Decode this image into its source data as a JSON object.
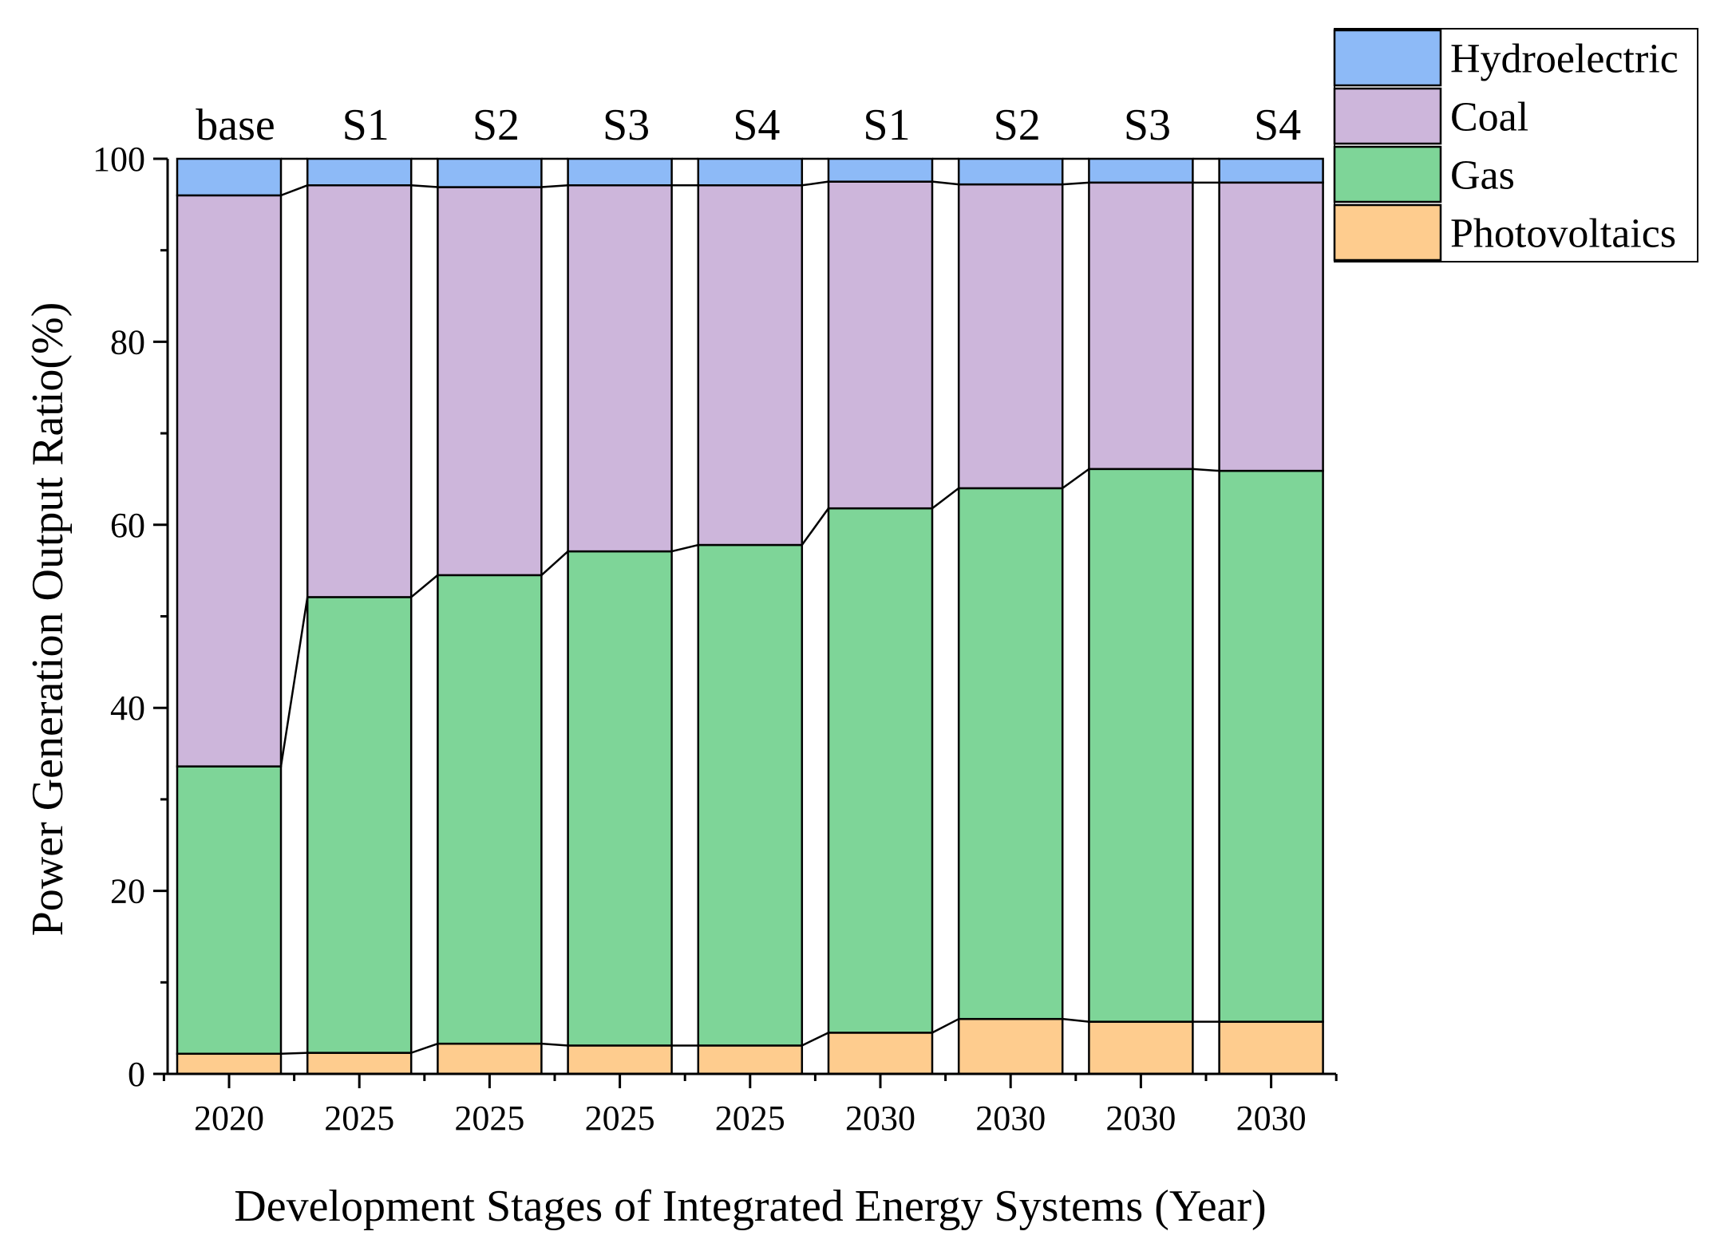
{
  "chart_data": {
    "type": "bar",
    "stacked": true,
    "xlabel": "Development Stages of Integrated Energy Systems (Year)",
    "ylabel": "Power Generation Output Ratio(%)",
    "ylim": [
      0,
      100
    ],
    "yticks": [
      0,
      20,
      40,
      60,
      80,
      100
    ],
    "categories": [
      "2020",
      "2025",
      "2025",
      "2025",
      "2025",
      "2030",
      "2030",
      "2030",
      "2030"
    ],
    "scenario_labels": [
      "base",
      "S1",
      "S2",
      "S3",
      "S4",
      "S1",
      "S2",
      "S3",
      "S4"
    ],
    "legend_position": "top-right",
    "series": [
      {
        "name": "Photovoltaics",
        "color": "#FECC8E",
        "values": [
          2.2,
          2.3,
          3.3,
          3.1,
          3.1,
          4.5,
          6.0,
          5.7,
          5.7
        ]
      },
      {
        "name": "Gas",
        "color": "#7ED598",
        "values": [
          31.4,
          49.8,
          51.2,
          54.0,
          54.7,
          57.3,
          58.0,
          60.4,
          60.2
        ]
      },
      {
        "name": "Coal",
        "color": "#CDB6DB",
        "values": [
          62.4,
          45.0,
          42.4,
          40.0,
          39.3,
          35.7,
          33.2,
          31.3,
          31.5
        ]
      },
      {
        "name": "Hydroelectric",
        "color": "#8DBAF7",
        "values": [
          4.0,
          2.9,
          3.1,
          2.9,
          2.9,
          2.5,
          2.8,
          2.6,
          2.6
        ]
      }
    ]
  }
}
